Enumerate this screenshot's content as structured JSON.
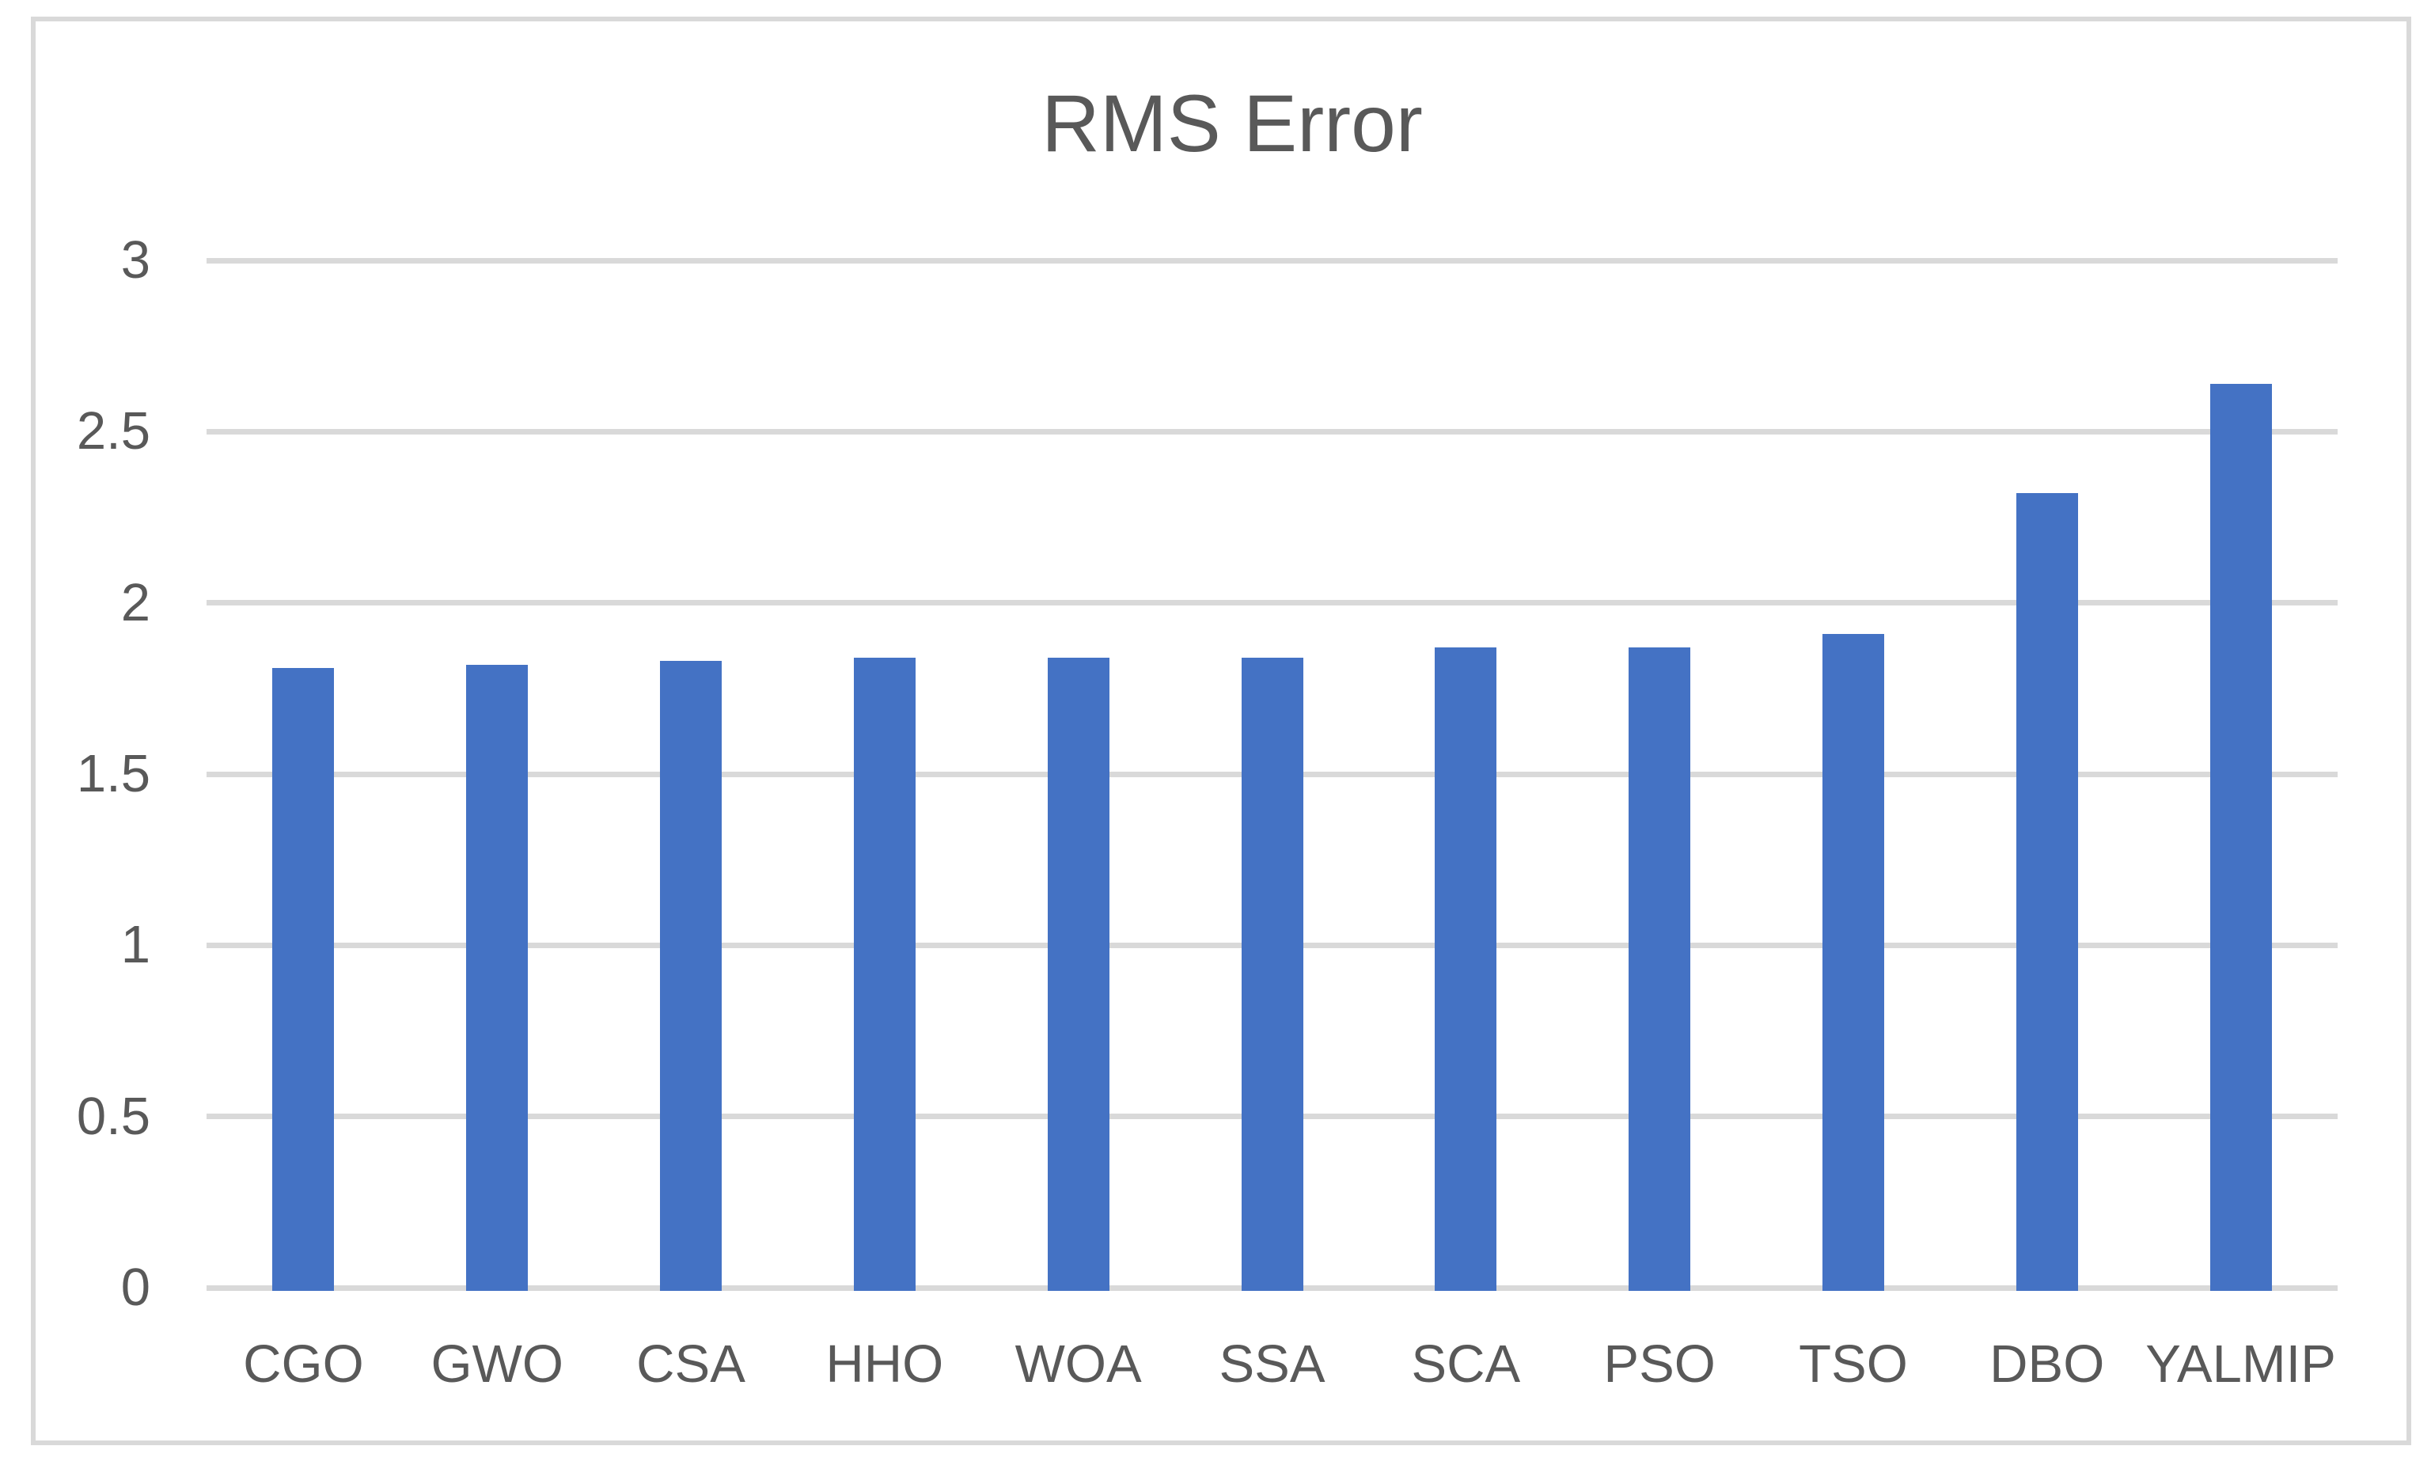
{
  "chart_data": {
    "type": "bar",
    "title": "RMS Error",
    "categories": [
      "CGO",
      "GWO",
      "CSA",
      "HHO",
      "WOA",
      "SSA",
      "SCA",
      "PSO",
      "TSO",
      "DBO",
      "YALMIP"
    ],
    "values": [
      1.81,
      1.82,
      1.83,
      1.84,
      1.84,
      1.84,
      1.87,
      1.87,
      1.91,
      2.32,
      2.64
    ],
    "xlabel": "",
    "ylabel": "",
    "ylim": [
      0,
      3
    ],
    "ytick_labels": [
      "0",
      "0.5",
      "1",
      "1.5",
      "2",
      "2.5",
      "3"
    ],
    "ytick_values": [
      0,
      0.5,
      1,
      1.5,
      2,
      2.5,
      3
    ],
    "grid": "horizontal-on",
    "legend": "none",
    "colors": {
      "bar": "#4472C4",
      "gridline": "#D9D9D9",
      "axis_line": "#D9D9D9",
      "figure_border": "#D9D9D9",
      "text": "#595959",
      "background": "#FFFFFF"
    }
  }
}
